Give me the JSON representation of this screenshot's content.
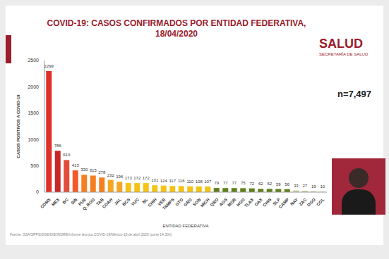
{
  "chart_data": {
    "type": "bar",
    "title": "COVID-19: CASOS CONFIRMADOS POR ENTIDAD FEDERATIVA, 18/04/2020",
    "logo_text": "SALUD",
    "logo_subtext": "SECRETARÍA DE SALUD",
    "annotations": [
      "n=7,497"
    ],
    "source": "Fuente: SSA/SPPS/DGE/DIE/INDRE/Informe técnico.COVID-19/México-18 de abril 2020 (corte 14:30h)",
    "x_label": "ENTIDAD FEDERATIVA",
    "y_label": "CASOS POSITIVOS A COVID-19",
    "categories": [
      "CDMX",
      "MEX",
      "BC",
      "SIN",
      "PUE",
      "Q. ROO",
      "TAB",
      "COAH",
      "JAL",
      "BCS",
      "YUC",
      "NL",
      "CHIH",
      "VER",
      "TAMPS",
      "GTO",
      "GRO",
      "SON",
      "MICH",
      "QRO",
      "AGS",
      "MOR",
      "HGO",
      "TLAX",
      "OAX",
      "CHIS",
      "SLP",
      "CAMP",
      "NAY",
      "ZAC",
      "DGO",
      "COL"
    ],
    "values": [
      2299,
      786,
      610,
      413,
      330,
      315,
      278,
      232,
      196,
      173,
      172,
      172,
      131,
      124,
      117,
      116,
      110,
      108,
      107,
      79,
      77,
      77,
      75,
      72,
      62,
      62,
      59,
      56,
      33,
      27,
      19,
      10
    ],
    "colors": [
      "#e0302a",
      "#c62828",
      "#e34b3b",
      "#f4592a",
      "#f57f20",
      "#f57f20",
      "#f57f20",
      "#f5a623",
      "#f5a623",
      "#f3c316",
      "#f3c316",
      "#f3c316",
      "#f3c316",
      "#f3c316",
      "#f3c316",
      "#f3c316",
      "#f3c316",
      "#f3c316",
      "#f3c316",
      "#5f7f1c",
      "#5f7f1c",
      "#5f7f1c",
      "#5f7f1c",
      "#5f7f1c",
      "#5f7f1c",
      "#5f7f1c",
      "#5f7f1c",
      "#5f7f1c",
      "#c8d1a0",
      "#c8d1a0",
      "#c8d1a0",
      "#c8d1a0"
    ],
    "ylim": [
      0,
      2500
    ],
    "yticks": [
      0,
      500,
      1000,
      1500,
      2000,
      2500
    ],
    "grid": false,
    "data_labels": true
  }
}
